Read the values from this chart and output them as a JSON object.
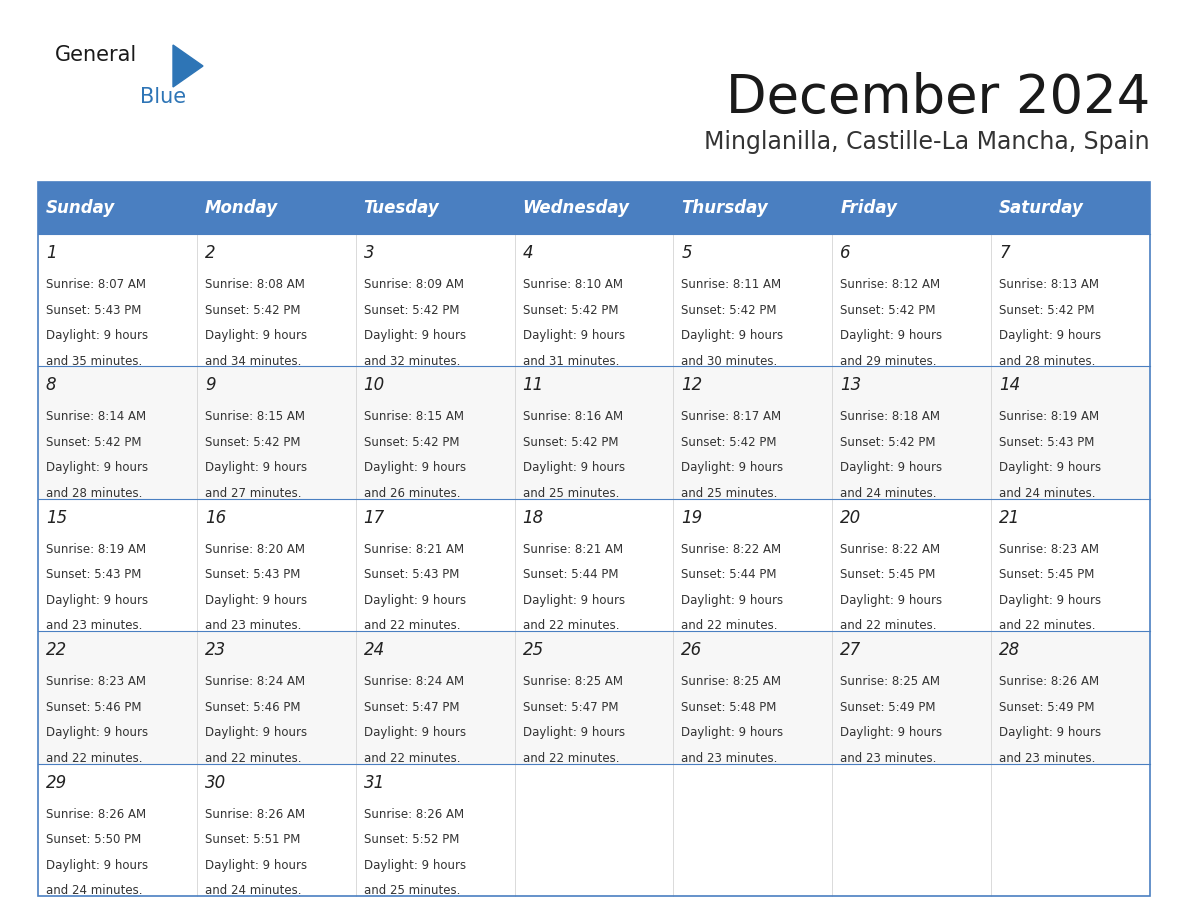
{
  "title": "December 2024",
  "subtitle": "Minglanilla, Castille-La Mancha, Spain",
  "header_color": "#4a7fc1",
  "header_text_color": "#FFFFFF",
  "border_color": "#4a7fc1",
  "days_of_week": [
    "Sunday",
    "Monday",
    "Tuesday",
    "Wednesday",
    "Thursday",
    "Friday",
    "Saturday"
  ],
  "weeks": [
    [
      {
        "day": 1,
        "sunrise": "8:07 AM",
        "sunset": "5:43 PM",
        "daylight_hours": 9,
        "daylight_minutes": 35
      },
      {
        "day": 2,
        "sunrise": "8:08 AM",
        "sunset": "5:42 PM",
        "daylight_hours": 9,
        "daylight_minutes": 34
      },
      {
        "day": 3,
        "sunrise": "8:09 AM",
        "sunset": "5:42 PM",
        "daylight_hours": 9,
        "daylight_minutes": 32
      },
      {
        "day": 4,
        "sunrise": "8:10 AM",
        "sunset": "5:42 PM",
        "daylight_hours": 9,
        "daylight_minutes": 31
      },
      {
        "day": 5,
        "sunrise": "8:11 AM",
        "sunset": "5:42 PM",
        "daylight_hours": 9,
        "daylight_minutes": 30
      },
      {
        "day": 6,
        "sunrise": "8:12 AM",
        "sunset": "5:42 PM",
        "daylight_hours": 9,
        "daylight_minutes": 29
      },
      {
        "day": 7,
        "sunrise": "8:13 AM",
        "sunset": "5:42 PM",
        "daylight_hours": 9,
        "daylight_minutes": 28
      }
    ],
    [
      {
        "day": 8,
        "sunrise": "8:14 AM",
        "sunset": "5:42 PM",
        "daylight_hours": 9,
        "daylight_minutes": 28
      },
      {
        "day": 9,
        "sunrise": "8:15 AM",
        "sunset": "5:42 PM",
        "daylight_hours": 9,
        "daylight_minutes": 27
      },
      {
        "day": 10,
        "sunrise": "8:15 AM",
        "sunset": "5:42 PM",
        "daylight_hours": 9,
        "daylight_minutes": 26
      },
      {
        "day": 11,
        "sunrise": "8:16 AM",
        "sunset": "5:42 PM",
        "daylight_hours": 9,
        "daylight_minutes": 25
      },
      {
        "day": 12,
        "sunrise": "8:17 AM",
        "sunset": "5:42 PM",
        "daylight_hours": 9,
        "daylight_minutes": 25
      },
      {
        "day": 13,
        "sunrise": "8:18 AM",
        "sunset": "5:42 PM",
        "daylight_hours": 9,
        "daylight_minutes": 24
      },
      {
        "day": 14,
        "sunrise": "8:19 AM",
        "sunset": "5:43 PM",
        "daylight_hours": 9,
        "daylight_minutes": 24
      }
    ],
    [
      {
        "day": 15,
        "sunrise": "8:19 AM",
        "sunset": "5:43 PM",
        "daylight_hours": 9,
        "daylight_minutes": 23
      },
      {
        "day": 16,
        "sunrise": "8:20 AM",
        "sunset": "5:43 PM",
        "daylight_hours": 9,
        "daylight_minutes": 23
      },
      {
        "day": 17,
        "sunrise": "8:21 AM",
        "sunset": "5:43 PM",
        "daylight_hours": 9,
        "daylight_minutes": 22
      },
      {
        "day": 18,
        "sunrise": "8:21 AM",
        "sunset": "5:44 PM",
        "daylight_hours": 9,
        "daylight_minutes": 22
      },
      {
        "day": 19,
        "sunrise": "8:22 AM",
        "sunset": "5:44 PM",
        "daylight_hours": 9,
        "daylight_minutes": 22
      },
      {
        "day": 20,
        "sunrise": "8:22 AM",
        "sunset": "5:45 PM",
        "daylight_hours": 9,
        "daylight_minutes": 22
      },
      {
        "day": 21,
        "sunrise": "8:23 AM",
        "sunset": "5:45 PM",
        "daylight_hours": 9,
        "daylight_minutes": 22
      }
    ],
    [
      {
        "day": 22,
        "sunrise": "8:23 AM",
        "sunset": "5:46 PM",
        "daylight_hours": 9,
        "daylight_minutes": 22
      },
      {
        "day": 23,
        "sunrise": "8:24 AM",
        "sunset": "5:46 PM",
        "daylight_hours": 9,
        "daylight_minutes": 22
      },
      {
        "day": 24,
        "sunrise": "8:24 AM",
        "sunset": "5:47 PM",
        "daylight_hours": 9,
        "daylight_minutes": 22
      },
      {
        "day": 25,
        "sunrise": "8:25 AM",
        "sunset": "5:47 PM",
        "daylight_hours": 9,
        "daylight_minutes": 22
      },
      {
        "day": 26,
        "sunrise": "8:25 AM",
        "sunset": "5:48 PM",
        "daylight_hours": 9,
        "daylight_minutes": 23
      },
      {
        "day": 27,
        "sunrise": "8:25 AM",
        "sunset": "5:49 PM",
        "daylight_hours": 9,
        "daylight_minutes": 23
      },
      {
        "day": 28,
        "sunrise": "8:26 AM",
        "sunset": "5:49 PM",
        "daylight_hours": 9,
        "daylight_minutes": 23
      }
    ],
    [
      {
        "day": 29,
        "sunrise": "8:26 AM",
        "sunset": "5:50 PM",
        "daylight_hours": 9,
        "daylight_minutes": 24
      },
      {
        "day": 30,
        "sunrise": "8:26 AM",
        "sunset": "5:51 PM",
        "daylight_hours": 9,
        "daylight_minutes": 24
      },
      {
        "day": 31,
        "sunrise": "8:26 AM",
        "sunset": "5:52 PM",
        "daylight_hours": 9,
        "daylight_minutes": 25
      },
      null,
      null,
      null,
      null
    ]
  ],
  "title_fontsize": 38,
  "subtitle_fontsize": 17,
  "header_fontsize": 12,
  "day_num_fontsize": 12,
  "cell_text_fontsize": 8.5
}
